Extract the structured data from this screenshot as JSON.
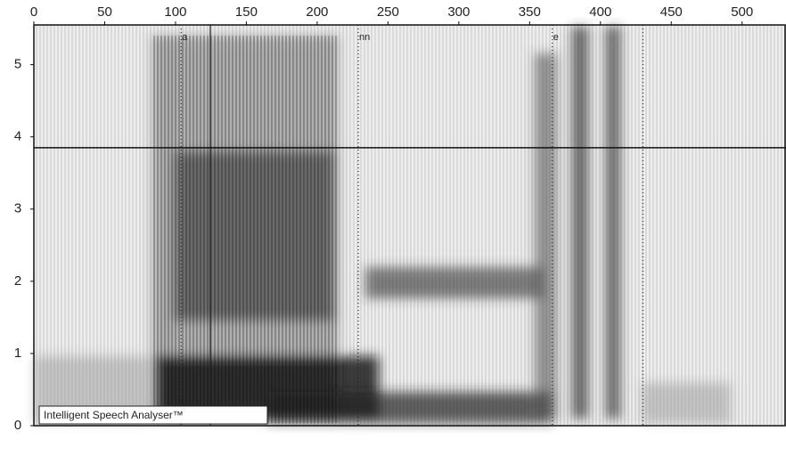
{
  "chart_data": {
    "type": "spectrogram",
    "xlim": [
      0,
      531
    ],
    "ylim": [
      0,
      5.55
    ],
    "xticks": [
      0,
      50,
      100,
      150,
      200,
      250,
      300,
      350,
      400,
      450,
      500
    ],
    "yticks": [
      0,
      1,
      2,
      3,
      4,
      5
    ],
    "reference_line": 3.85,
    "segments": [
      {
        "x": 104,
        "label": "a"
      },
      {
        "x": 229,
        "label": "nn"
      },
      {
        "x": 366,
        "label": "e"
      },
      {
        "x": 430
      }
    ],
    "watermark": "Intelligent Speech Analyser™"
  }
}
